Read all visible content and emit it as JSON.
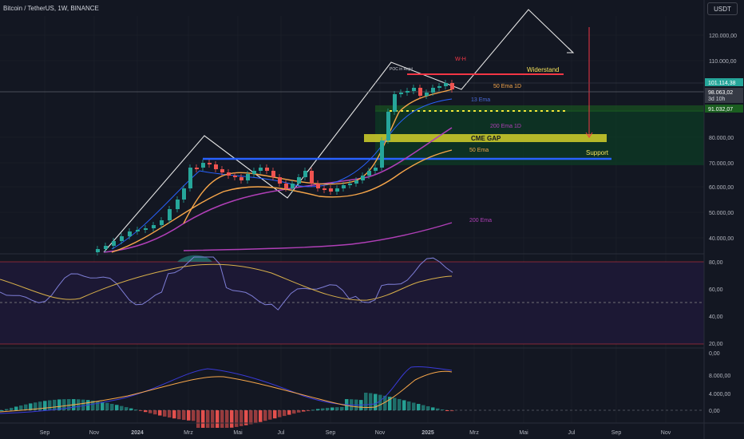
{
  "header": {
    "symbol": "Bitcoin / TetherUS, 1W, BINANCE",
    "currency": "USDT"
  },
  "price_axis": [
    "120.000,00",
    "110.000,00",
    "80.000,00",
    "70.000,00",
    "60.000,00",
    "50.000,00",
    "40.000,00"
  ],
  "price_badges": {
    "last": "101.114,38",
    "current": "98.063,02",
    "countdown": "3d 10h",
    "level": "91.032,07"
  },
  "rsi_axis": [
    "80,00",
    "60,00",
    "40,00",
    "20,00"
  ],
  "macd_axis": [
    "0,00",
    "8.000,00",
    "4.000,00",
    "0,00"
  ],
  "time_axis": [
    "Sep",
    "Nov",
    "2024",
    "Mrz",
    "Mai",
    "Jul",
    "Sep",
    "Nov",
    "2025",
    "Mrz",
    "Mai",
    "Jul",
    "Sep",
    "Nov"
  ],
  "annotations": {
    "widerstand": "Widerstand",
    "wh": "W-H",
    "poc": "POC in Rejct",
    "ema50_1d": "50 Ema 1D",
    "ema13": "13 Ema",
    "ema200_1d": "200 Ema 1D",
    "cme_gap": "CME GAP",
    "ema50": "50 Ema",
    "support": "Support",
    "ema200": "200 Ema"
  },
  "colors": {
    "bg": "#131722",
    "up": "#26a69a",
    "down": "#ef5350",
    "grid": "#1e222d",
    "ema13": "#2962ff",
    "ema50": "#f7a64a",
    "ema200": "#b03fb7",
    "resistance": "#f23645",
    "support": "#2962ff",
    "gap": "#d6d62c",
    "zone": "#0b3d24",
    "rsi": "#7e7ed6",
    "rsi_ma": "#d8b04a",
    "macd": "#3a3ad8",
    "signal": "#f7a64a"
  },
  "chart_data": {
    "type": "line",
    "title": "Bitcoin / TetherUS, 1W, BINANCE",
    "x": [
      "Sep",
      "Nov",
      "2024",
      "Mrz",
      "Mai",
      "Jul",
      "Sep",
      "Nov",
      "2025",
      "Mrz"
    ],
    "series": [
      {
        "values": [
          26000,
          35000,
          42500,
          69000,
          64000,
          62000,
          63000,
          90000,
          96000,
          98063
        ]
      }
    ],
    "ylim": [
      36000,
      128000
    ]
  }
}
